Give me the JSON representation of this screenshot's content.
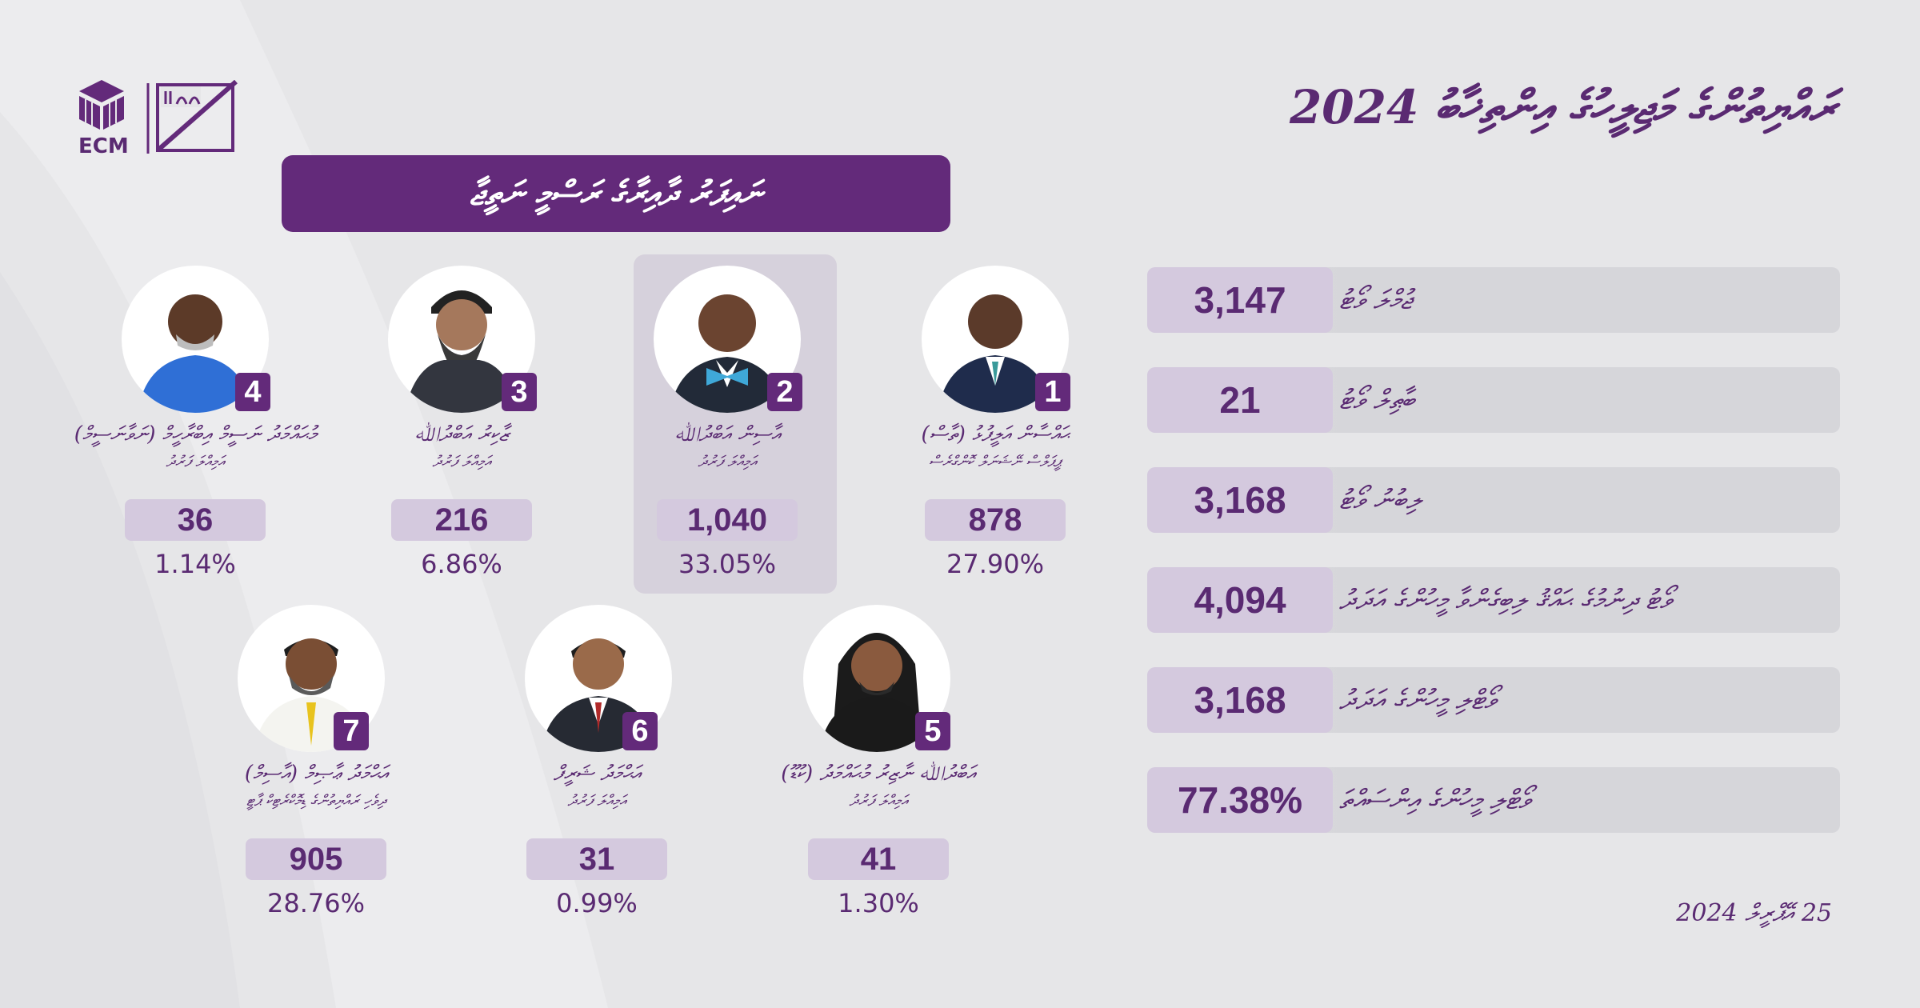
{
  "header": {
    "logo_text": "ECM",
    "title": "ރައްޔިތުންގެ މަޖިލީހުގެ އިންތިޚާބު 2024",
    "banner": "ނައިފަރު ދާއިރާގެ ރަސްމީ ނަތީޖާ"
  },
  "stats": [
    {
      "label": "ޖުމްލަ ވޯޓު",
      "value": "3,147"
    },
    {
      "label": "ބާޠިލް ވޯޓު",
      "value": "21"
    },
    {
      "label": "ލިބުނު ވޯޓު",
      "value": "3,168"
    },
    {
      "label": "ވޯޓު ދިނުމުގެ ޙައްޤު ލިބިގެންވާ މީހުންގެ އަދަދު",
      "value": "4,094"
    },
    {
      "label": "ވޯޓްލި މީހުންގެ އަދަދު",
      "value": "3,168"
    },
    {
      "label": "ވޯޓްލި މީހުންގެ އިންސައްތަ",
      "value": "77.38%"
    }
  ],
  "date": "25 އޭޕްރީލް 2024",
  "candidates": [
    {
      "number": "1",
      "name": "ޙައްސާން އަލީފުޅު (ތާސް)",
      "party": "ޕީޕަލްސް ނޭޝަނަލް ކޮންގްރެސް",
      "votes": "878",
      "percent": "27.90%"
    },
    {
      "number": "2",
      "name": "އާސިން އަބްދުﷲ",
      "party": "އަމިއްލަ ފަރުދު",
      "votes": "1,040",
      "percent": "33.05%"
    },
    {
      "number": "3",
      "name": "ޒާކިރު އަބްދުﷲ",
      "party": "އަމިއްލަ ފަރުދު",
      "votes": "216",
      "percent": "6.86%"
    },
    {
      "number": "4",
      "name": "މުޙައްމަދު ނަސީމް އިބްރާހީމް (ނަވާނަސީމް)",
      "party": "އަމިއްލަ ފަރުދު",
      "votes": "36",
      "percent": "1.14%"
    },
    {
      "number": "5",
      "name": "އަބްދުﷲ ނާޒިރު މުޙައްމަދު (ކުޑޫ)",
      "party": "އަމިއްލަ ފަރުދު",
      "votes": "41",
      "percent": "1.30%"
    },
    {
      "number": "6",
      "name": "އަޙްމަދު ޝަރީފް",
      "party": "އަމިއްލަ ފަރުދު",
      "votes": "31",
      "percent": "0.99%"
    },
    {
      "number": "7",
      "name": "އަޙްމަދު ޢާޞިމް (އާސިމް)",
      "party": "ދިވެހި ރައްޔިތުންގެ ޑިމޮކްރެޓިކް ޕާޓީ",
      "votes": "905",
      "percent": "28.76%"
    }
  ],
  "colors": {
    "accent": "#632a7a",
    "text": "#5a2a72",
    "chip": "#d4c9de",
    "background": "#e6e6e8"
  }
}
